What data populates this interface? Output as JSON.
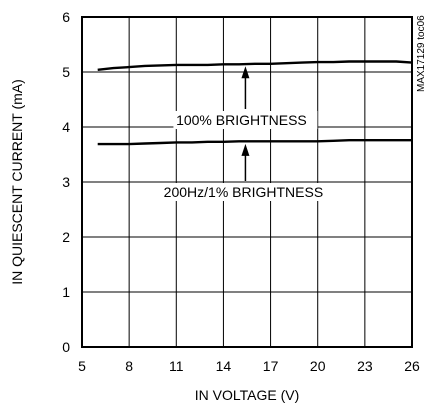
{
  "chart_data": {
    "type": "line",
    "title": "",
    "xlabel": "IN VOLTAGE (V)",
    "ylabel": "IN QUIESCENT CURRENT (mA)",
    "xlim": [
      5,
      26
    ],
    "ylim": [
      0,
      6
    ],
    "xticks": [
      5,
      8,
      11,
      14,
      17,
      20,
      23,
      26
    ],
    "yticks": [
      0,
      1,
      2,
      3,
      4,
      5,
      6
    ],
    "grid": true,
    "legend": "none",
    "series": [
      {
        "name": "100% BRIGHTNESS",
        "x": [
          6,
          7,
          8,
          9,
          10,
          11,
          12,
          13,
          14,
          15,
          16,
          17,
          18,
          19,
          20,
          21,
          22,
          23,
          24,
          25,
          26
        ],
        "y": [
          5.04,
          5.07,
          5.09,
          5.11,
          5.12,
          5.13,
          5.13,
          5.13,
          5.14,
          5.14,
          5.15,
          5.15,
          5.16,
          5.17,
          5.18,
          5.18,
          5.19,
          5.19,
          5.19,
          5.19,
          5.17
        ]
      },
      {
        "name": "200Hz/1% BRIGHTNESS",
        "x": [
          6,
          7,
          8,
          9,
          10,
          11,
          12,
          13,
          14,
          15,
          16,
          17,
          18,
          19,
          20,
          21,
          22,
          23,
          24,
          25,
          26
        ],
        "y": [
          3.69,
          3.69,
          3.69,
          3.7,
          3.71,
          3.72,
          3.72,
          3.73,
          3.73,
          3.74,
          3.74,
          3.74,
          3.74,
          3.74,
          3.74,
          3.75,
          3.76,
          3.76,
          3.76,
          3.76,
          3.76
        ]
      }
    ],
    "annotations": [
      {
        "text": "100% BRIGHTNESS",
        "x": 15.4,
        "arrow_to": [
          15.4,
          5.14
        ]
      },
      {
        "text": "200Hz/1% BRIGHTNESS",
        "x": 15.4,
        "arrow_to": [
          15.4,
          3.73
        ]
      }
    ],
    "code": "MAX17129 toc06"
  }
}
